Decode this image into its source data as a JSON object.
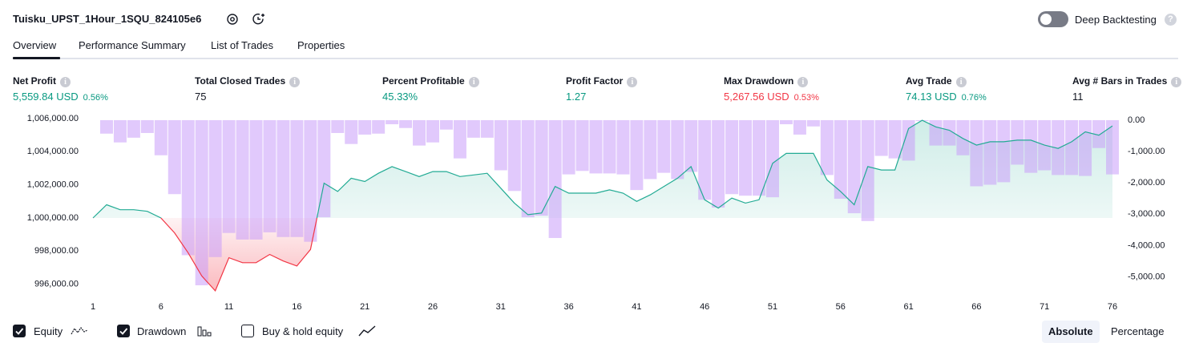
{
  "header": {
    "title": "Tuisku_UPST_1Hour_1SQU_824105e6",
    "toggle_label": "Deep Backtesting",
    "toggle_on": false
  },
  "tabs": [
    {
      "label": "Overview",
      "active": true
    },
    {
      "label": "Performance Summary",
      "active": false
    },
    {
      "label": "List of Trades",
      "active": false
    },
    {
      "label": "Properties",
      "active": false
    }
  ],
  "metrics": [
    {
      "label": "Net Profit",
      "value": "5,559.84 USD",
      "percent": "0.56%",
      "tone": "positive"
    },
    {
      "label": "Total Closed Trades",
      "value": "75",
      "tone": "neutral"
    },
    {
      "label": "Percent Profitable",
      "value": "45.33%",
      "tone": "positive"
    },
    {
      "label": "Profit Factor",
      "value": "1.27",
      "tone": "positive"
    },
    {
      "label": "Max Drawdown",
      "value": "5,267.56 USD",
      "percent": "0.53%",
      "tone": "negative"
    },
    {
      "label": "Avg Trade",
      "value": "74.13 USD",
      "percent": "0.76%",
      "tone": "positive"
    },
    {
      "label": "Avg # Bars in Trades",
      "value": "11",
      "tone": "neutral"
    }
  ],
  "chart_data": {
    "type": "equity",
    "x": [
      1,
      2,
      3,
      4,
      5,
      6,
      7,
      8,
      9,
      10,
      11,
      12,
      13,
      14,
      15,
      16,
      17,
      18,
      19,
      20,
      21,
      22,
      23,
      24,
      25,
      26,
      27,
      28,
      29,
      30,
      31,
      32,
      33,
      34,
      35,
      36,
      37,
      38,
      39,
      40,
      41,
      42,
      43,
      44,
      45,
      46,
      47,
      48,
      49,
      50,
      51,
      52,
      53,
      54,
      55,
      56,
      57,
      58,
      59,
      60,
      61,
      62,
      63,
      64,
      65,
      66,
      67,
      68,
      69,
      70,
      71,
      72,
      73,
      74,
      75,
      76
    ],
    "xlim": [
      1,
      76
    ],
    "xticks": [
      1,
      6,
      11,
      16,
      21,
      26,
      31,
      36,
      41,
      46,
      51,
      56,
      61,
      66,
      71,
      76
    ],
    "ylim": [
      995500,
      1006000
    ],
    "yticks": [
      {
        "value": 996000,
        "label": "996,000.00"
      },
      {
        "value": 998000,
        "label": "998,000.00"
      },
      {
        "value": 1000000,
        "label": "1,000,000.00"
      },
      {
        "value": 1002000,
        "label": "1,002,000.00"
      },
      {
        "value": 1004000,
        "label": "1,004,000.00"
      },
      {
        "value": 1006000,
        "label": "1,006,000.00"
      }
    ],
    "y2lim": [
      -5500,
      50
    ],
    "y2ticks": [
      {
        "value": 0,
        "label": "0.00"
      },
      {
        "value": -1000,
        "label": "-1,000.00"
      },
      {
        "value": -2000,
        "label": "-2,000.00"
      },
      {
        "value": -3000,
        "label": "-3,000.00"
      },
      {
        "value": -4000,
        "label": "-4,000.00"
      },
      {
        "value": -5000,
        "label": "-5,000.00"
      }
    ],
    "series": [
      {
        "name": "Equity",
        "type": "area",
        "color": "#22ab94",
        "negative_color": "#f23645",
        "visible": true,
        "values": [
          1000000,
          1000800,
          1000500,
          1000500,
          1000400,
          1000000,
          999100,
          997900,
          996500,
          995600,
          997600,
          997300,
          997300,
          997800,
          997400,
          997100,
          998100,
          1002100,
          1001600,
          1002400,
          1002200,
          1002700,
          1003100,
          1002800,
          1002500,
          1002800,
          1002800,
          1002500,
          1002600,
          1002700,
          1001800,
          1000900,
          1000200,
          1000300,
          1001900,
          1001500,
          1001500,
          1001500,
          1001700,
          1001500,
          1001000,
          1001400,
          1001900,
          1002400,
          1003100,
          1001100,
          1000600,
          1001200,
          1000900,
          1001100,
          1003300,
          1003900,
          1003900,
          1003900,
          1002300,
          1001600,
          1000800,
          1003100,
          1002900,
          1002900,
          1005400,
          1005900,
          1005500,
          1005300,
          1004800,
          1004400,
          1004600,
          1004600,
          1004700,
          1004700,
          1004400,
          1004200,
          1004600,
          1005200,
          1005000,
          1005560
        ]
      },
      {
        "name": "Drawdown",
        "type": "bar",
        "axis": "y2",
        "color": "#c89cfa",
        "visible": true,
        "values": [
          null,
          -430,
          -710,
          -560,
          -410,
          -1120,
          -2360,
          -4310,
          -5270,
          -4370,
          -3600,
          -3810,
          -3810,
          -3580,
          -3730,
          -3730,
          -3880,
          -3100,
          -410,
          -760,
          -460,
          -430,
          -130,
          -250,
          -810,
          -710,
          -300,
          -1220,
          -560,
          -560,
          -1600,
          -2260,
          -3100,
          -3050,
          -3760,
          -1730,
          -1620,
          -1700,
          -1700,
          -1730,
          -2230,
          -1880,
          -1680,
          -1880,
          -1650,
          -2540,
          -2790,
          -2360,
          -2410,
          -2410,
          -2460,
          -130,
          -460,
          -200,
          -1750,
          -2510,
          -2970,
          -3220,
          -1140,
          -1220,
          -1290,
          -30,
          -810,
          -810,
          -1120,
          -2110,
          -2060,
          -1980,
          -1420,
          -1680,
          -1600,
          -1750,
          -1750,
          -1780,
          -890,
          -1730
        ]
      }
    ],
    "buy_hold": {
      "name": "Buy & hold equity",
      "visible": false
    },
    "view_modes": [
      "Absolute",
      "Percentage"
    ],
    "view_mode": "Absolute"
  }
}
